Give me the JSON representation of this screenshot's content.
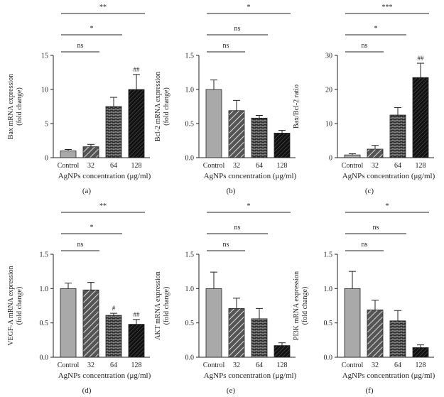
{
  "chart_data": [
    {
      "type": "bar",
      "panel_label": "(a)",
      "ylabel": "Bax mRNA expression",
      "ylabel2": "(fold change)",
      "xlabel": "AgNPs concentration (μg/ml)",
      "categories": [
        "Control",
        "32",
        "64",
        "128"
      ],
      "values": [
        1.0,
        1.6,
        7.5,
        10.0
      ],
      "errors": [
        0.2,
        0.35,
        1.35,
        2.2
      ],
      "ylim": [
        0,
        15
      ],
      "yticks": [
        "0",
        "5",
        "10",
        "15"
      ],
      "annotations": [
        "",
        "",
        "",
        "##"
      ],
      "brackets": [
        {
          "from": 0,
          "to": 1,
          "label": "ns"
        },
        {
          "from": 0,
          "to": 2,
          "label": "*"
        },
        {
          "from": 0,
          "to": 3,
          "label": "**"
        }
      ]
    },
    {
      "type": "bar",
      "panel_label": "(b)",
      "ylabel": "Bcl-2 mRNA expression",
      "ylabel2": "(fold change)",
      "xlabel": "AgNPs concentration (μg/ml)",
      "categories": [
        "Control",
        "32",
        "64",
        "128"
      ],
      "values": [
        1.0,
        0.69,
        0.58,
        0.36
      ],
      "errors": [
        0.14,
        0.15,
        0.04,
        0.04
      ],
      "ylim": [
        0,
        1.5
      ],
      "yticks": [
        "0.0",
        "0.5",
        "1.0",
        "1.5"
      ],
      "annotations": [
        "",
        "",
        "",
        ""
      ],
      "brackets": [
        {
          "from": 0,
          "to": 1,
          "label": "ns"
        },
        {
          "from": 0,
          "to": 2,
          "label": "ns"
        },
        {
          "from": 0,
          "to": 3,
          "label": "*"
        }
      ]
    },
    {
      "type": "bar",
      "panel_label": "(c)",
      "ylabel": "Bax/Bcl-2 ratio",
      "ylabel2": "",
      "xlabel": "AgNPs concentration (μg/ml)",
      "categories": [
        "Control",
        "32",
        "64",
        "128"
      ],
      "values": [
        0.8,
        2.5,
        12.5,
        23.5
      ],
      "errors": [
        0.35,
        1.1,
        2.2,
        4.2
      ],
      "ylim": [
        0,
        30
      ],
      "yticks": [
        "0",
        "10",
        "20",
        "30"
      ],
      "annotations": [
        "",
        "",
        "",
        "##"
      ],
      "brackets": [
        {
          "from": 0,
          "to": 1,
          "label": "ns"
        },
        {
          "from": 0,
          "to": 2,
          "label": "*"
        },
        {
          "from": 0,
          "to": 3,
          "label": "***"
        }
      ]
    },
    {
      "type": "bar",
      "panel_label": "(d)",
      "ylabel": "VEGF-A mRNA expression",
      "ylabel2": "(fold change)",
      "xlabel": "AgNPs concentration (μg/ml)",
      "categories": [
        "Control",
        "32",
        "64",
        "128"
      ],
      "values": [
        1.0,
        0.98,
        0.61,
        0.48
      ],
      "errors": [
        0.08,
        0.11,
        0.03,
        0.07
      ],
      "ylim": [
        0,
        1.5
      ],
      "yticks": [
        "0.0",
        "0.5",
        "1.0",
        "1.5"
      ],
      "annotations": [
        "",
        "",
        "#",
        "##"
      ],
      "brackets": [
        {
          "from": 0,
          "to": 1,
          "label": "ns"
        },
        {
          "from": 0,
          "to": 2,
          "label": "*"
        },
        {
          "from": 0,
          "to": 3,
          "label": "**"
        }
      ]
    },
    {
      "type": "bar",
      "panel_label": "(e)",
      "ylabel": "AKT mRNA expression",
      "ylabel2": "(fold change)",
      "xlabel": "AgNPs concentration (μg/ml)",
      "categories": [
        "Control",
        "32",
        "64",
        "128"
      ],
      "values": [
        1.0,
        0.71,
        0.56,
        0.17
      ],
      "errors": [
        0.24,
        0.15,
        0.15,
        0.04
      ],
      "ylim": [
        0,
        1.5
      ],
      "yticks": [
        "0.0",
        "0.5",
        "1.0",
        "1.5"
      ],
      "annotations": [
        "",
        "",
        "",
        ""
      ],
      "brackets": [
        {
          "from": 0,
          "to": 1,
          "label": "ns"
        },
        {
          "from": 0,
          "to": 2,
          "label": "ns"
        },
        {
          "from": 0,
          "to": 3,
          "label": "*"
        }
      ]
    },
    {
      "type": "bar",
      "panel_label": "(f)",
      "ylabel": "PI3K mRNA expression",
      "ylabel2": "(fold change)",
      "xlabel": "AgNPs concentration (μg/ml)",
      "categories": [
        "Control",
        "32",
        "64",
        "128"
      ],
      "values": [
        1.0,
        0.69,
        0.53,
        0.14
      ],
      "errors": [
        0.25,
        0.14,
        0.15,
        0.04
      ],
      "ylim": [
        0,
        1.5
      ],
      "yticks": [
        "0.0",
        "0.5",
        "1.0",
        "1.5"
      ],
      "annotations": [
        "",
        "",
        "",
        ""
      ],
      "brackets": [
        {
          "from": 0,
          "to": 1,
          "label": "ns"
        },
        {
          "from": 0,
          "to": 2,
          "label": "ns"
        },
        {
          "from": 0,
          "to": 3,
          "label": "*"
        }
      ]
    }
  ]
}
